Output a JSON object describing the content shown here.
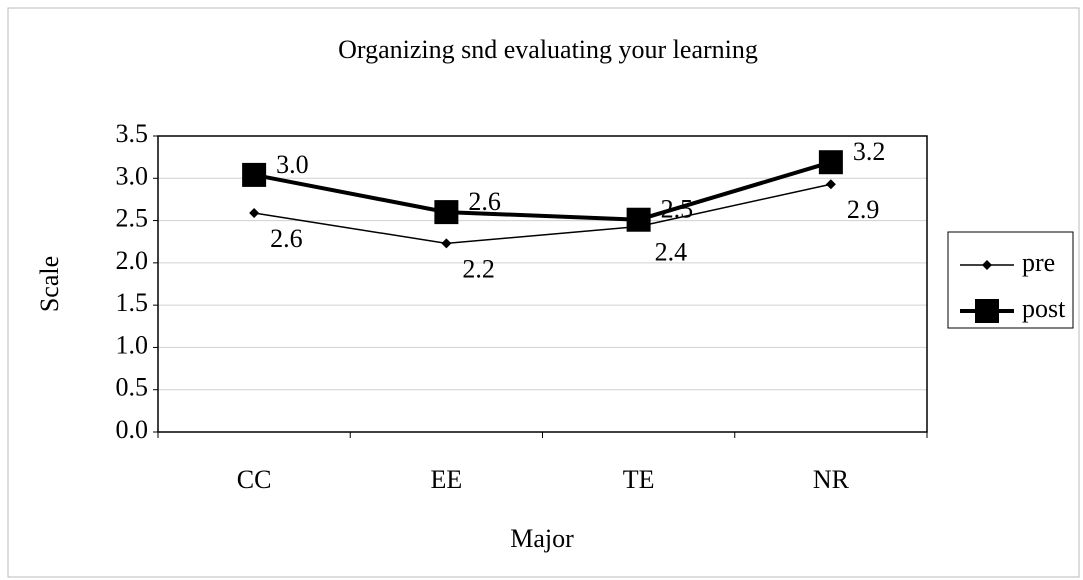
{
  "chart_data": {
    "type": "line",
    "title": "Organizing snd evaluating your learning",
    "x_label": "Major",
    "y_label": "Scale",
    "categories": [
      "CC",
      "EE",
      "TE",
      "NR"
    ],
    "series": [
      {
        "name": "pre",
        "color": "#000000",
        "marker": "diamond",
        "values": [
          2.59,
          2.23,
          2.43,
          2.93
        ],
        "value_labels": [
          "2.6",
          "2.2",
          "2.4",
          "2.9"
        ]
      },
      {
        "name": "post",
        "color": "#000000",
        "marker": "square",
        "values": [
          3.04,
          2.6,
          2.51,
          3.19
        ],
        "value_labels": [
          "3.0",
          "2.6",
          "2.5",
          "3.2"
        ]
      }
    ],
    "ylim": [
      0,
      3.5
    ],
    "yticks": [
      {
        "value": 0,
        "label": "0.0"
      },
      {
        "value": 0.5,
        "label": "0.5"
      },
      {
        "value": 1,
        "label": "1.0"
      },
      {
        "value": 1.5,
        "label": "1.5"
      },
      {
        "value": 2,
        "label": "2.0"
      },
      {
        "value": 2.5,
        "label": "2.5"
      },
      {
        "value": 3,
        "label": "3.0"
      },
      {
        "value": 3.5,
        "label": "3.5"
      }
    ],
    "grid": true,
    "legend": "right"
  }
}
